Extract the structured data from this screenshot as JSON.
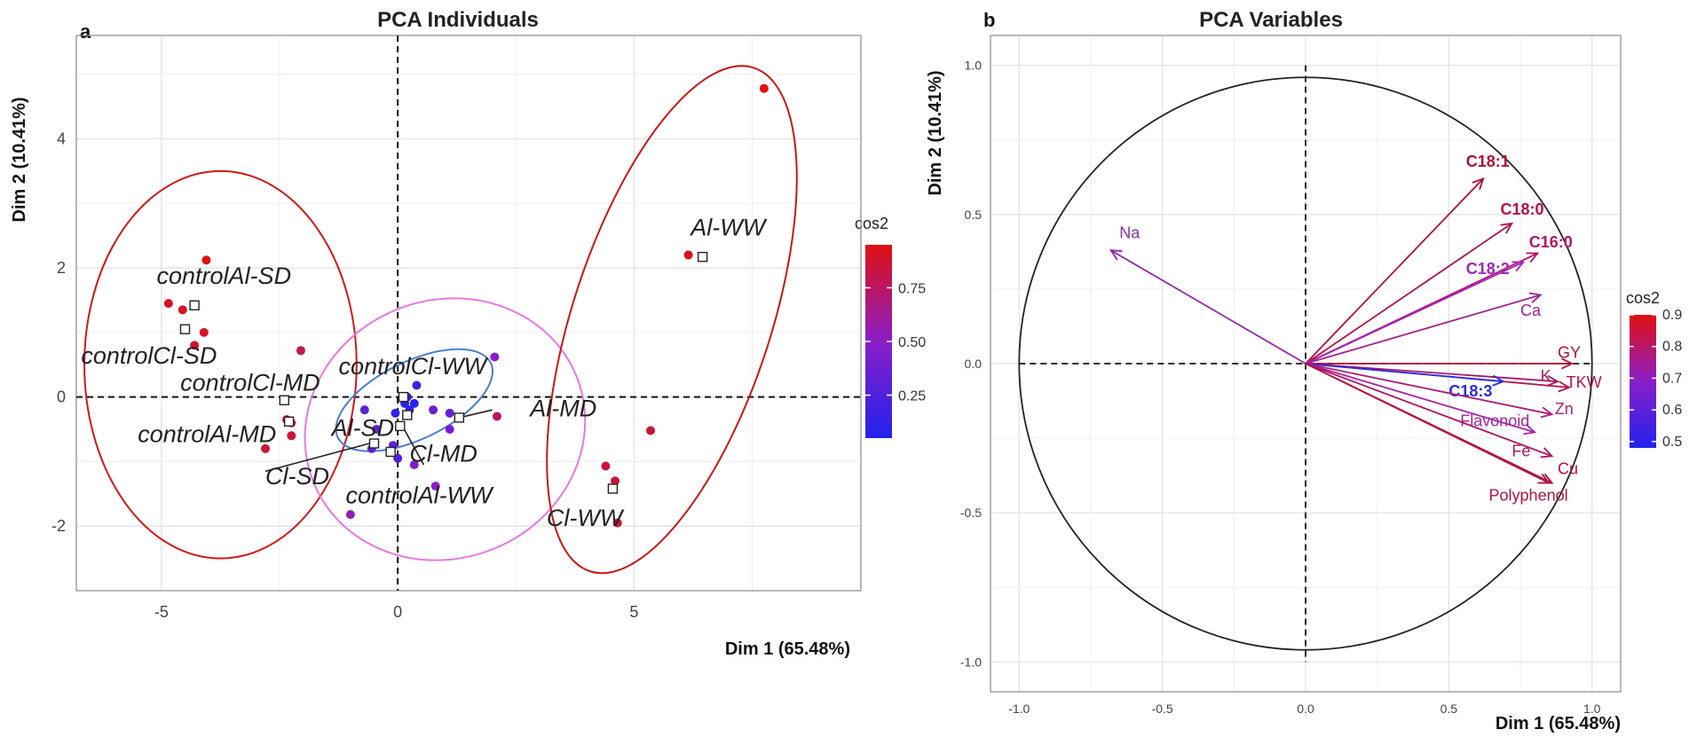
{
  "chart_data": [
    {
      "type": "scatter",
      "panel_label": "a",
      "title": "PCA Individuals",
      "xlabel": "Dim 1 (65.48%)",
      "ylabel": "Dim 2 (10.41%)",
      "xlim": [
        -6.8,
        9.8
      ],
      "ylim": [
        -3.0,
        5.6
      ],
      "xticks": [
        "-5",
        "0",
        "5"
      ],
      "xtick_values": [
        -5,
        0,
        5
      ],
      "yticks": [
        "-2",
        "0",
        "2",
        "4"
      ],
      "ytick_values": [
        -2,
        0,
        2,
        4
      ],
      "grid": true,
      "legend": {
        "title": "cos2",
        "ticks": [
          "0.75",
          "0.50",
          "0.25"
        ],
        "tick_values": [
          0.75,
          0.5,
          0.25
        ],
        "range": [
          0.05,
          0.95
        ],
        "position": "right"
      },
      "points": [
        {
          "x": -4.05,
          "y": 2.12,
          "cos2": 0.95
        },
        {
          "x": -4.85,
          "y": 1.45,
          "cos2": 0.9
        },
        {
          "x": -4.55,
          "y": 1.35,
          "cos2": 0.9
        },
        {
          "x": -4.1,
          "y": 1.0,
          "cos2": 0.9
        },
        {
          "x": -4.3,
          "y": 0.8,
          "cos2": 0.88
        },
        {
          "x": -2.05,
          "y": 0.72,
          "cos2": 0.8
        },
        {
          "x": -2.4,
          "y": -0.05,
          "cos2": 0.85
        },
        {
          "x": -2.35,
          "y": -0.35,
          "cos2": 0.85
        },
        {
          "x": -2.25,
          "y": -0.4,
          "cos2": 0.85
        },
        {
          "x": -2.25,
          "y": -0.6,
          "cos2": 0.85
        },
        {
          "x": -2.8,
          "y": -0.8,
          "cos2": 0.85
        },
        {
          "x": -0.7,
          "y": -0.2,
          "cos2": 0.3
        },
        {
          "x": -0.45,
          "y": -0.5,
          "cos2": 0.35
        },
        {
          "x": -0.55,
          "y": -0.8,
          "cos2": 0.3
        },
        {
          "x": -0.05,
          "y": -0.25,
          "cos2": 0.1
        },
        {
          "x": 0.15,
          "y": -0.1,
          "cos2": 0.08
        },
        {
          "x": 0.25,
          "y": -0.2,
          "cos2": 0.12
        },
        {
          "x": 0.2,
          "y": 0.0,
          "cos2": 0.1
        },
        {
          "x": 0.4,
          "y": 0.18,
          "cos2": 0.15
        },
        {
          "x": 0.35,
          "y": -0.1,
          "cos2": 0.1
        },
        {
          "x": 0.75,
          "y": -0.2,
          "cos2": 0.35
        },
        {
          "x": 1.1,
          "y": -0.5,
          "cos2": 0.4
        },
        {
          "x": 1.1,
          "y": -0.25,
          "cos2": 0.35
        },
        {
          "x": -0.1,
          "y": -0.75,
          "cos2": 0.3
        },
        {
          "x": 0.0,
          "y": -0.95,
          "cos2": 0.25
        },
        {
          "x": 0.35,
          "y": -1.05,
          "cos2": 0.45
        },
        {
          "x": 0.8,
          "y": -1.38,
          "cos2": 0.5
        },
        {
          "x": -1.0,
          "y": -1.82,
          "cos2": 0.55
        },
        {
          "x": 2.05,
          "y": 0.62,
          "cos2": 0.5
        },
        {
          "x": 2.1,
          "y": -0.3,
          "cos2": 0.75
        },
        {
          "x": 5.35,
          "y": -0.52,
          "cos2": 0.85
        },
        {
          "x": 4.4,
          "y": -1.07,
          "cos2": 0.85
        },
        {
          "x": 4.6,
          "y": -1.3,
          "cos2": 0.85
        },
        {
          "x": 4.65,
          "y": -1.95,
          "cos2": 0.85
        },
        {
          "x": 6.15,
          "y": 2.2,
          "cos2": 0.92
        },
        {
          "x": 7.75,
          "y": 4.78,
          "cos2": 0.95
        }
      ],
      "centroids": [
        {
          "label": "controlAl-SD",
          "x": -4.3,
          "y": 1.42
        },
        {
          "label": "controlCl-SD",
          "x": -4.5,
          "y": 1.05
        },
        {
          "label": "controlCl-MD",
          "x": -2.4,
          "y": -0.05
        },
        {
          "label": "controlAl-MD",
          "x": -2.3,
          "y": -0.38
        },
        {
          "label": "controlCl-WW",
          "x": 0.12,
          "y": 0.0
        },
        {
          "label": "Al-SD",
          "x": -0.5,
          "y": -0.72
        },
        {
          "label": "Cl-SD",
          "x": -0.15,
          "y": -0.85
        },
        {
          "label": "Al-MD",
          "x": 1.3,
          "y": -0.32
        },
        {
          "label": "Cl-MD",
          "x": 0.2,
          "y": -0.28
        },
        {
          "label": "controlAl-WW",
          "x": 0.05,
          "y": -0.45
        },
        {
          "label": "Cl-WW",
          "x": 4.55,
          "y": -1.42
        },
        {
          "label": "Al-WW",
          "x": 6.45,
          "y": 2.17
        }
      ],
      "group_labels": [
        {
          "text": "controlAl-SD",
          "x": -5.1,
          "y": 1.75
        },
        {
          "text": "controlCl-SD",
          "x": -6.7,
          "y": 0.52
        },
        {
          "text": "controlCl-MD",
          "x": -4.6,
          "y": 0.1
        },
        {
          "text": "controlAl-MD",
          "x": -5.5,
          "y": -0.7
        },
        {
          "text": "controlCl-WW",
          "x": -1.25,
          "y": 0.35
        },
        {
          "text": "Al-SD",
          "x": -1.4,
          "y": -0.6
        },
        {
          "text": "Cl-SD",
          "x": -2.8,
          "y": -1.35
        },
        {
          "text": "Al-MD",
          "x": 2.8,
          "y": -0.3
        },
        {
          "text": "Cl-MD",
          "x": 0.25,
          "y": -1.0
        },
        {
          "text": "controlAl-WW",
          "x": -1.1,
          "y": -1.65
        },
        {
          "text": "Cl-WW",
          "x": 3.15,
          "y": -2.0
        },
        {
          "text": "Al-WW",
          "x": 6.2,
          "y": 2.5
        }
      ],
      "ellipses": [
        {
          "cx": -3.75,
          "cy": 0.5,
          "rx": 2.88,
          "ry": 3.0,
          "angle": 0,
          "color": "#d01818"
        },
        {
          "cx": 1.0,
          "cy": -0.5,
          "rx": 3.0,
          "ry": 2.0,
          "angle": 22,
          "color": "#e878e0"
        },
        {
          "cx": 0.35,
          "cy": -0.05,
          "rx": 1.8,
          "ry": 0.6,
          "angle": 26,
          "color": "#4a7cd6"
        },
        {
          "cx": 5.8,
          "cy": 1.2,
          "rx": 2.1,
          "ry": 4.1,
          "angle": -18,
          "color": "#c61818"
        }
      ]
    },
    {
      "type": "vector",
      "panel_label": "b",
      "title": "PCA Variables",
      "xlabel": "Dim 1 (65.48%)",
      "ylabel": "Dim 2 (10.41%)",
      "xlim": [
        -1.1,
        1.1
      ],
      "ylim": [
        -1.1,
        1.1
      ],
      "xticks": [
        "-1.0",
        "-0.5",
        "0.0",
        "0.5",
        "1.0"
      ],
      "xtick_values": [
        -1.0,
        -0.5,
        0.0,
        0.5,
        1.0
      ],
      "yticks": [
        "1.0",
        "0.5",
        "0.0",
        "-0.5",
        "-1.0"
      ],
      "ytick_values": [
        1.0,
        0.5,
        0.0,
        -0.5,
        -1.0
      ],
      "grid": true,
      "unit_circle": true,
      "legend": {
        "title": "cos2",
        "ticks": [
          "0.9",
          "0.8",
          "0.7",
          "0.6",
          "0.5"
        ],
        "tick_values": [
          0.9,
          0.8,
          0.7,
          0.6,
          0.5
        ],
        "range": [
          0.48,
          0.9
        ],
        "position": "right"
      },
      "variables": [
        {
          "name": "Na",
          "x": -0.68,
          "y": 0.38,
          "cos2": 0.6,
          "color": "#8e2aa6",
          "lx": -0.65,
          "ly": 0.42,
          "bold": false
        },
        {
          "name": "C18:1",
          "x": 0.62,
          "y": 0.62,
          "cos2": 0.88,
          "color": "#b01034",
          "lx": 0.56,
          "ly": 0.66,
          "bold": true
        },
        {
          "name": "C18:0",
          "x": 0.72,
          "y": 0.47,
          "cos2": 0.85,
          "color": "#b2104c",
          "lx": 0.68,
          "ly": 0.5,
          "bold": true
        },
        {
          "name": "C16:0",
          "x": 0.81,
          "y": 0.37,
          "cos2": 0.8,
          "color": "#b61466",
          "lx": 0.78,
          "ly": 0.39,
          "bold": true
        },
        {
          "name": "C18:2",
          "x": 0.76,
          "y": 0.34,
          "cos2": 0.7,
          "color": "#a424c0",
          "lx": 0.56,
          "ly": 0.3,
          "bold": true
        },
        {
          "name": "Ca",
          "x": 0.82,
          "y": 0.23,
          "cos2": 0.72,
          "color": "#a4228a",
          "lx": 0.75,
          "ly": 0.16,
          "bold": false
        },
        {
          "name": "GY",
          "x": 0.93,
          "y": 0.0,
          "cos2": 0.88,
          "color": "#b01034",
          "lx": 0.88,
          "ly": 0.02,
          "bold": false
        },
        {
          "name": "K",
          "x": 0.88,
          "y": -0.06,
          "cos2": 0.75,
          "color": "#a81a6a",
          "lx": 0.82,
          "ly": -0.06,
          "bold": false
        },
        {
          "name": "TKW",
          "x": 0.92,
          "y": -0.08,
          "cos2": 0.82,
          "color": "#b0144e",
          "lx": 0.91,
          "ly": -0.08,
          "bold": false
        },
        {
          "name": "C18:3",
          "x": 0.69,
          "y": -0.06,
          "cos2": 0.49,
          "color": "#2a2ee0",
          "lx": 0.5,
          "ly": -0.11,
          "bold": true
        },
        {
          "name": "Zn",
          "x": 0.86,
          "y": -0.17,
          "cos2": 0.76,
          "color": "#a82076",
          "lx": 0.87,
          "ly": -0.17,
          "bold": false
        },
        {
          "name": "Flavonoid",
          "x": 0.8,
          "y": -0.23,
          "cos2": 0.7,
          "color": "#a424a6",
          "lx": 0.54,
          "ly": -0.21,
          "bold": false
        },
        {
          "name": "Fe",
          "x": 0.86,
          "y": -0.31,
          "cos2": 0.8,
          "color": "#ae1660",
          "lx": 0.72,
          "ly": -0.31,
          "bold": false
        },
        {
          "name": "Cu",
          "x": 0.86,
          "y": -0.4,
          "cos2": 0.86,
          "color": "#b4123e",
          "lx": 0.88,
          "ly": -0.37,
          "bold": false
        },
        {
          "name": "Polyphenol",
          "x": 0.85,
          "y": -0.4,
          "cos2": 0.84,
          "color": "#b4143c",
          "lx": 0.64,
          "ly": -0.46,
          "bold": false
        }
      ]
    }
  ]
}
